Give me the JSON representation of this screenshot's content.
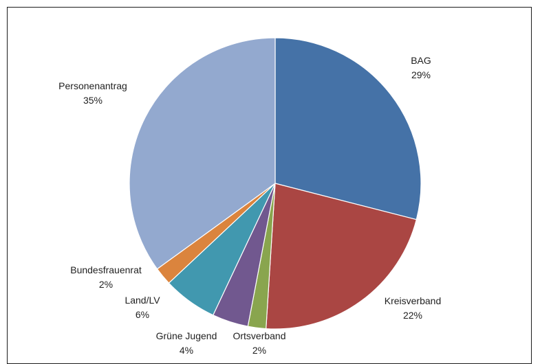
{
  "chart_data": {
    "type": "pie",
    "title": "",
    "start_angle_deg": 0,
    "direction": "clockwise",
    "slices": [
      {
        "label": "BAG",
        "percent_label": "29%",
        "value": 29,
        "color": "#4572a7"
      },
      {
        "label": "Kreisverband",
        "percent_label": "22%",
        "value": 22,
        "color": "#aa4643"
      },
      {
        "label": "Ortsverband",
        "percent_label": "2%",
        "value": 2,
        "color": "#89a54e"
      },
      {
        "label": "Grüne Jugend",
        "percent_label": "4%",
        "value": 4,
        "color": "#71588f"
      },
      {
        "label": "Land/LV",
        "percent_label": "6%",
        "value": 6,
        "color": "#4198af"
      },
      {
        "label": "Bundesfrauenrat",
        "percent_label": "2%",
        "value": 2,
        "color": "#db843d"
      },
      {
        "label": "Personenantrag",
        "percent_label": "35%",
        "value": 35,
        "color": "#93a9cf"
      }
    ]
  }
}
